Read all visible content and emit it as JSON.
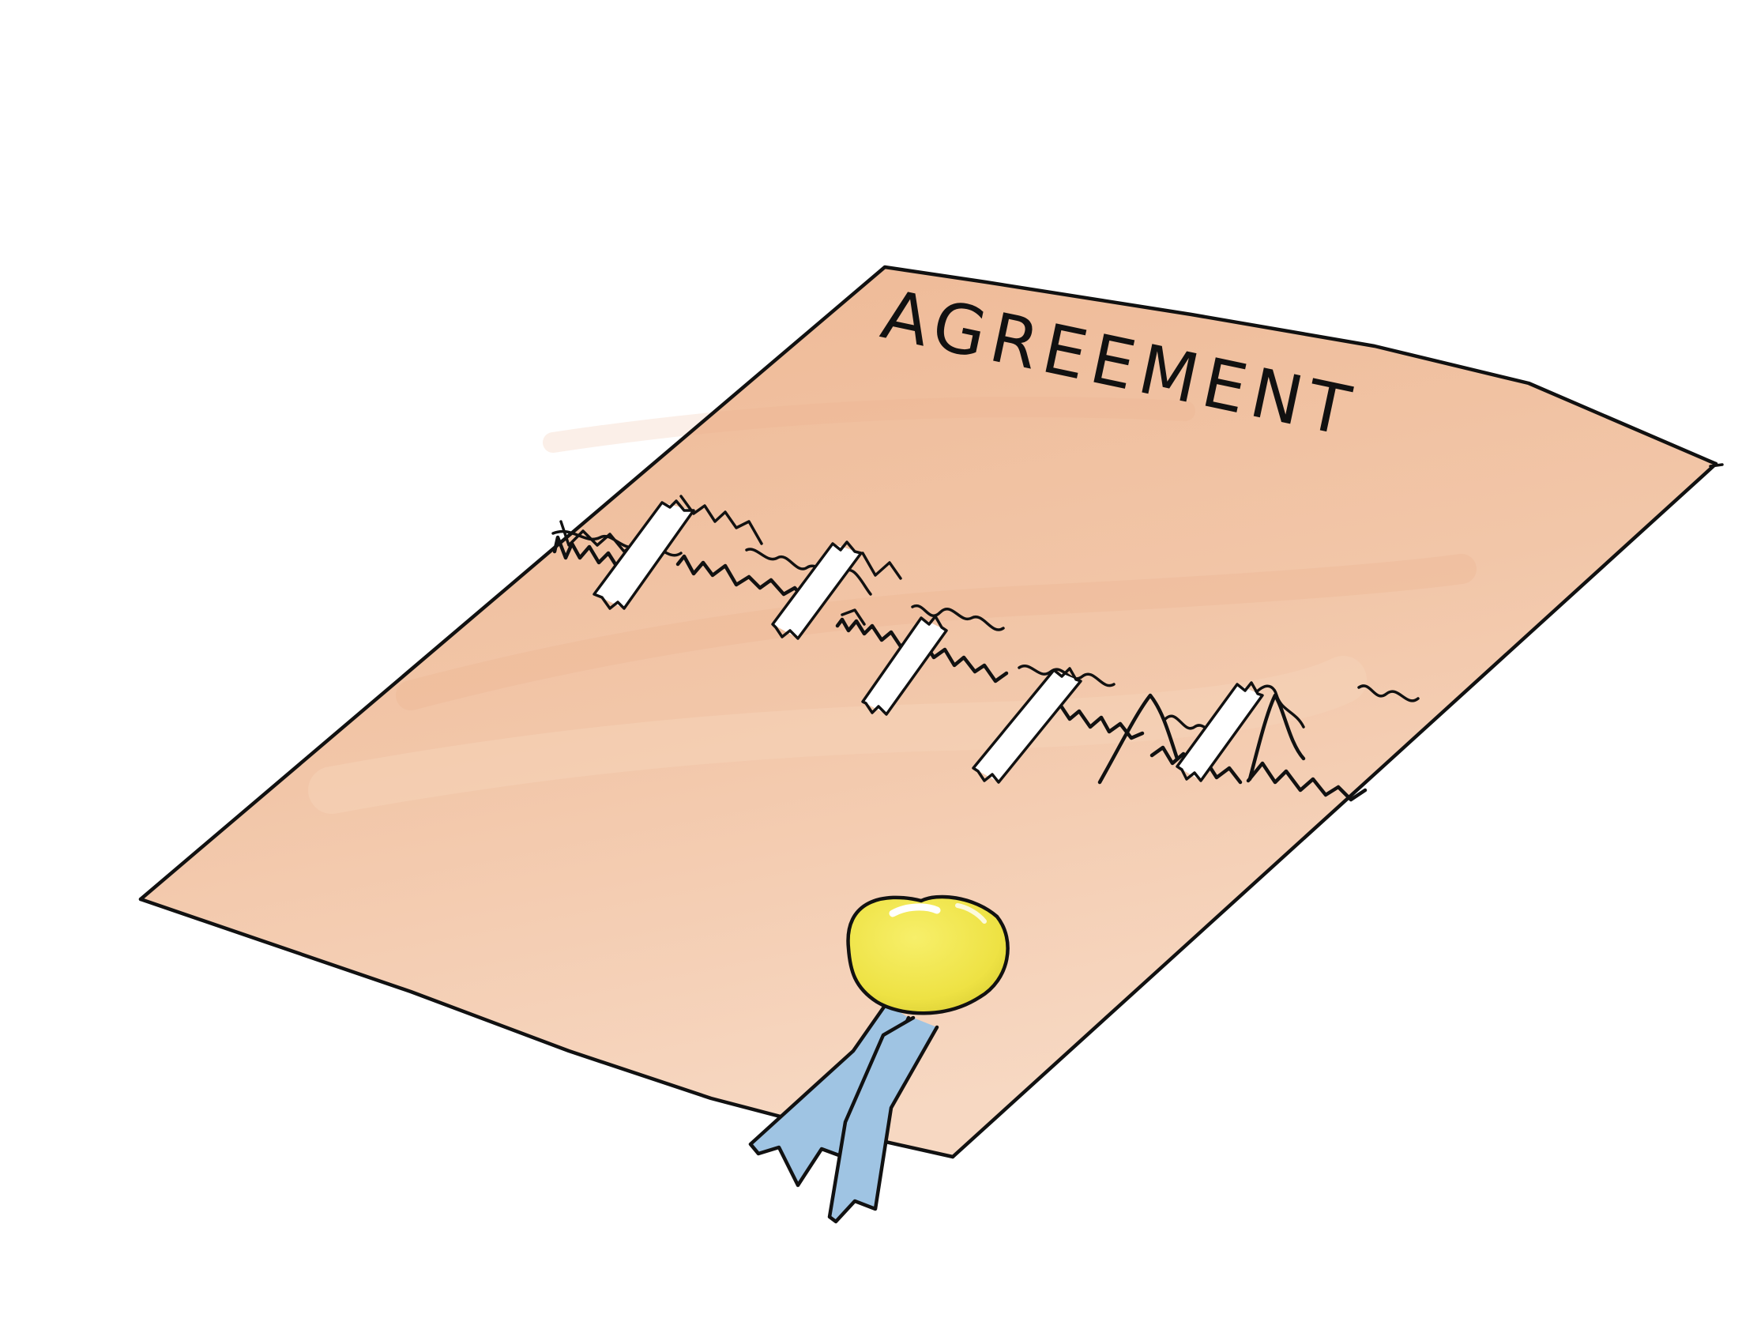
{
  "document": {
    "title": "AGREEMENT"
  },
  "colors": {
    "background": "#ffffff",
    "paper": "#f1c3a3",
    "paper_light": "#f6d5bd",
    "ink": "#111111",
    "tape": "#ffffff",
    "seal": "#f0e447",
    "seal_shadow": "#dcd037",
    "ribbon": "#9fc4e3"
  },
  "icons": {
    "paper": "torn-document-icon",
    "seal": "gold-seal-icon",
    "ribbon": "blue-ribbon-icon",
    "tape": "tape-strip-icon"
  }
}
